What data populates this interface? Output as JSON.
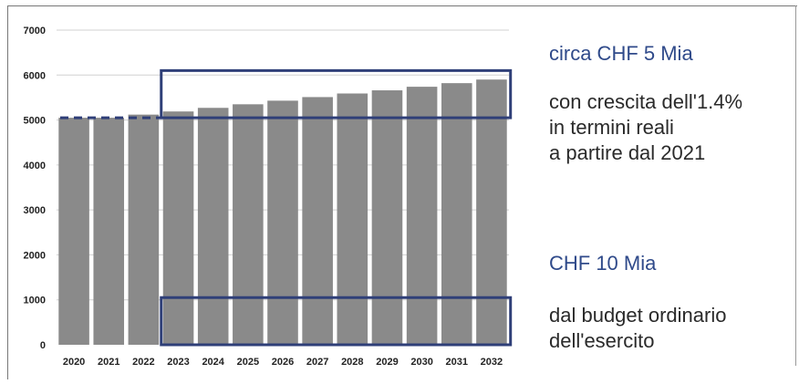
{
  "chart_data": {
    "type": "bar",
    "categories": [
      "2020",
      "2021",
      "2022",
      "2023",
      "2024",
      "2025",
      "2026",
      "2027",
      "2028",
      "2029",
      "2030",
      "2031",
      "2032"
    ],
    "values": [
      5050,
      5050,
      5120,
      5190,
      5270,
      5350,
      5430,
      5510,
      5590,
      5660,
      5740,
      5820,
      5900
    ],
    "ylim": [
      0,
      7000
    ],
    "yticks": [
      0,
      1000,
      2000,
      3000,
      4000,
      5000,
      6000,
      7000
    ],
    "grid": true,
    "dashed_baseline_value": 5050,
    "highlight_boxes": [
      {
        "x_from": "2023",
        "x_to": "2032",
        "y_from": 5050,
        "y_to": 6100
      },
      {
        "x_from": "2023",
        "x_to": "2032",
        "y_from": 0,
        "y_to": 1050
      }
    ],
    "colors": {
      "bar": "#8a8a8a",
      "box": "#2f3f78",
      "grid": "#d0d0d0",
      "dashed": "#2f3f78"
    }
  },
  "annotations": {
    "box1_title": "circa CHF 5 Mia",
    "box1_lines": [
      "con crescita  dell'1.4%",
      "in termini reali",
      "a partire dal 2021"
    ],
    "box2_title": "CHF 10 Mia",
    "box2_lines": [
      "dal budget ordinario",
      "dell'esercito"
    ]
  }
}
